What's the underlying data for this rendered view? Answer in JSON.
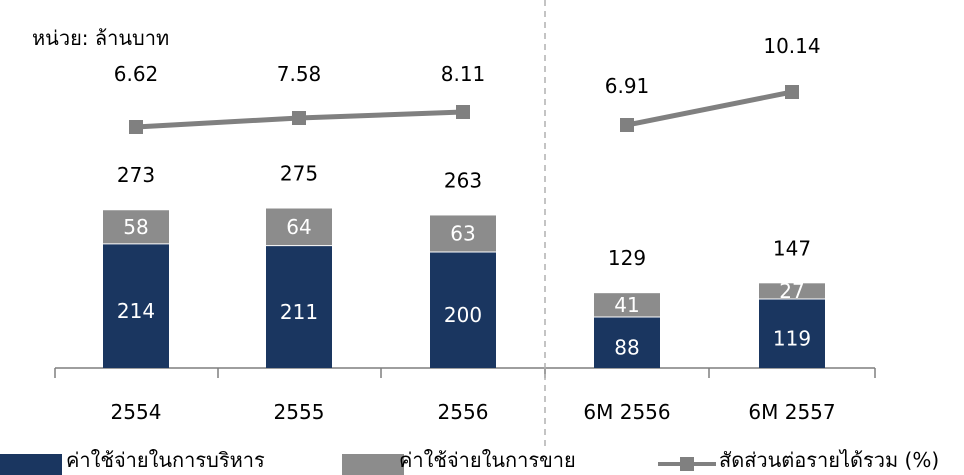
{
  "unit_label": "หน่วย: ล้านบาท",
  "colors": {
    "admin": "#1a3660",
    "selling": "#8c8c8c",
    "ratio_line": "#808080",
    "separator": "#b0b0b0"
  },
  "legend": {
    "admin_label": "ค่าใช้จ่ายในการบริหาร",
    "selling_label": "ค่าใช้จ่ายในการขาย",
    "ratio_label": "สัดส่วนต่อรายได้รวม (%)"
  },
  "chart_data": {
    "type": "bar",
    "stacked": true,
    "unit": "ล้านบาท",
    "categories": [
      "2554",
      "2555",
      "2556",
      "6M 2556",
      "6M 2557"
    ],
    "series": [
      {
        "name": "ค่าใช้จ่ายในการบริหาร",
        "values": [
          214,
          211,
          200,
          88,
          119
        ]
      },
      {
        "name": "ค่าใช้จ่ายในการขาย",
        "values": [
          58,
          64,
          63,
          41,
          27
        ]
      }
    ],
    "totals": [
      273,
      275,
      263,
      129,
      147
    ],
    "ratio_series": {
      "name": "สัดส่วนต่อรายได้รวม (%)",
      "type": "line",
      "values": [
        6.62,
        7.58,
        8.11,
        6.91,
        10.14
      ],
      "segments": [
        [
          0,
          2
        ],
        [
          3,
          4
        ]
      ]
    },
    "separator_after_category": 2,
    "legend_position": "bottom",
    "grid": false
  }
}
